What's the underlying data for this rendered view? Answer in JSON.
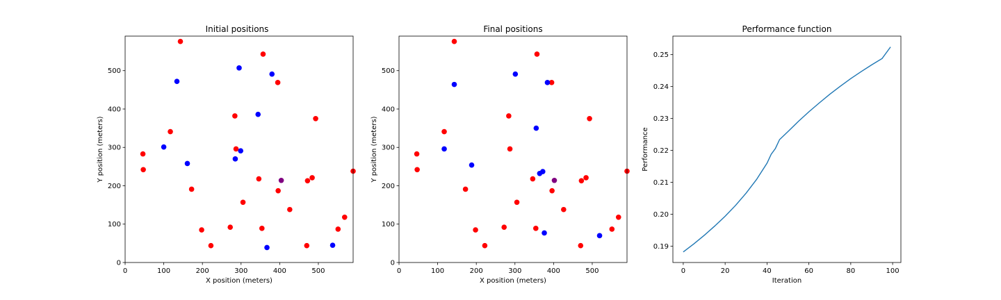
{
  "chart_data": [
    {
      "type": "scatter",
      "title": "Initial positions",
      "xlabel": "X position (meters)",
      "ylabel": "Y position (meters)",
      "xlim": [
        0,
        590
      ],
      "ylim": [
        0,
        590
      ],
      "xticks": [
        0,
        100,
        200,
        300,
        400,
        500
      ],
      "yticks": [
        0,
        100,
        200,
        300,
        400,
        500
      ],
      "grid": false,
      "colors": {
        "red": "#ff0000",
        "blue": "#0000ff",
        "purple": "#800080"
      },
      "series": [
        {
          "color": "red",
          "points": [
            [
              143,
              576
            ],
            [
              357,
              543
            ],
            [
              395,
              469
            ],
            [
              493,
              375
            ],
            [
              284,
              382
            ],
            [
              117,
              341
            ],
            [
              46,
              283
            ],
            [
              287,
              296
            ],
            [
              47,
              242
            ],
            [
              346,
              218
            ],
            [
              172,
              191
            ],
            [
              396,
              187
            ],
            [
              472,
              213
            ],
            [
              484,
              221
            ],
            [
              590,
              238
            ],
            [
              305,
              157
            ],
            [
              426,
              138
            ],
            [
              198,
              85
            ],
            [
              272,
              92
            ],
            [
              354,
              89
            ],
            [
              222,
              44
            ],
            [
              470,
              44
            ],
            [
              551,
              87
            ],
            [
              568,
              118
            ]
          ]
        },
        {
          "color": "blue",
          "points": [
            [
              134,
              472
            ],
            [
              295,
              507
            ],
            [
              380,
              491
            ],
            [
              344,
              386
            ],
            [
              100,
              301
            ],
            [
              161,
              258
            ],
            [
              299,
              291
            ],
            [
              285,
              270
            ],
            [
              367,
              39
            ],
            [
              537,
              45
            ]
          ]
        },
        {
          "color": "purple",
          "points": [
            [
              404,
              214
            ]
          ]
        }
      ]
    },
    {
      "type": "scatter",
      "title": "Final positions",
      "xlabel": "X position (meters)",
      "ylabel": "Y position (meters)",
      "xlim": [
        0,
        590
      ],
      "ylim": [
        0,
        590
      ],
      "xticks": [
        0,
        100,
        200,
        300,
        400,
        500
      ],
      "yticks": [
        0,
        100,
        200,
        300,
        400,
        500
      ],
      "grid": false,
      "colors": {
        "red": "#ff0000",
        "blue": "#0000ff",
        "purple": "#800080"
      },
      "series": [
        {
          "color": "red",
          "points": [
            [
              143,
              576
            ],
            [
              357,
              543
            ],
            [
              395,
              469
            ],
            [
              493,
              375
            ],
            [
              284,
              382
            ],
            [
              117,
              341
            ],
            [
              46,
              283
            ],
            [
              287,
              296
            ],
            [
              47,
              242
            ],
            [
              346,
              218
            ],
            [
              172,
              191
            ],
            [
              396,
              187
            ],
            [
              472,
              213
            ],
            [
              484,
              221
            ],
            [
              590,
              238
            ],
            [
              305,
              157
            ],
            [
              426,
              138
            ],
            [
              198,
              85
            ],
            [
              272,
              92
            ],
            [
              354,
              89
            ],
            [
              222,
              44
            ],
            [
              470,
              44
            ],
            [
              551,
              87
            ],
            [
              568,
              118
            ]
          ]
        },
        {
          "color": "blue",
          "points": [
            [
              143,
              464
            ],
            [
              301,
              491
            ],
            [
              384,
              469
            ],
            [
              355,
              350
            ],
            [
              117,
              296
            ],
            [
              188,
              254
            ],
            [
              372,
              237
            ],
            [
              364,
              232
            ],
            [
              376,
              77
            ],
            [
              519,
              70
            ]
          ]
        },
        {
          "color": "purple",
          "points": [
            [
              402,
              214
            ]
          ]
        }
      ]
    },
    {
      "type": "line",
      "title": "Performance function",
      "xlabel": "Iteration",
      "ylabel": "Performance",
      "xlim": [
        -4.95,
        103.95
      ],
      "ylim": [
        0.1849,
        0.2558
      ],
      "xticks": [
        0,
        20,
        40,
        60,
        80,
        100
      ],
      "yticks": [
        "0.19",
        "0.20",
        "0.21",
        "0.22",
        "0.23",
        "0.24",
        "0.25"
      ],
      "grid": false,
      "colors": {
        "line": "#1f77b4"
      },
      "series": [
        {
          "x": [
            0,
            5,
            10,
            15,
            20,
            25,
            30,
            35,
            40,
            42,
            44,
            46,
            50,
            55,
            60,
            65,
            70,
            75,
            80,
            85,
            90,
            95,
            99
          ],
          "y": [
            0.1882,
            0.1907,
            0.1934,
            0.1963,
            0.1994,
            0.2028,
            0.2066,
            0.2109,
            0.216,
            0.2188,
            0.2206,
            0.2234,
            0.2259,
            0.2291,
            0.2321,
            0.2349,
            0.2376,
            0.2401,
            0.2425,
            0.2447,
            0.2468,
            0.2488,
            0.2524
          ]
        }
      ]
    }
  ]
}
